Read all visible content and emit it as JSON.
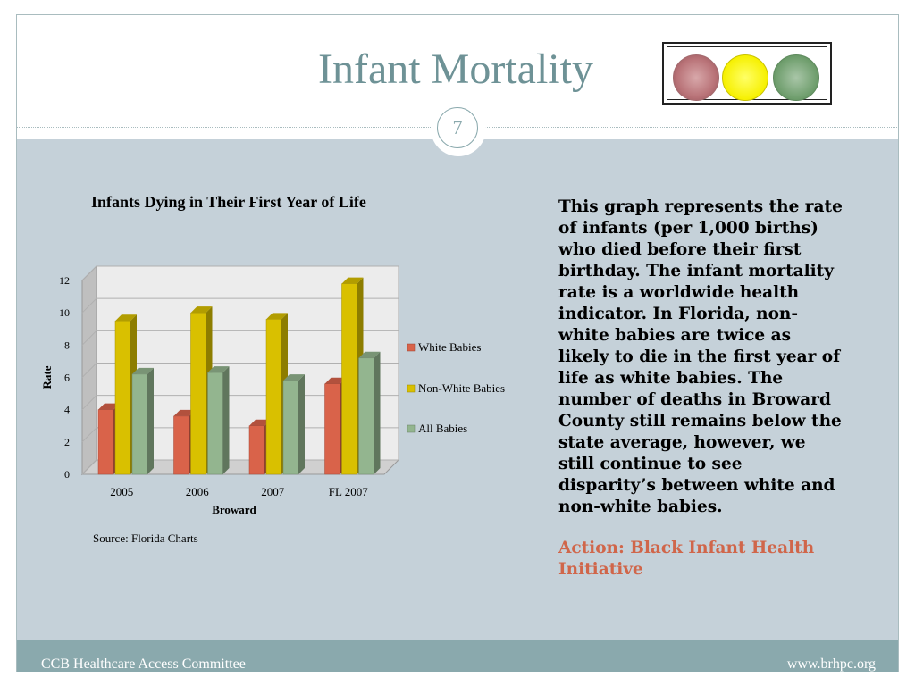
{
  "slide": {
    "title": "Infant Mortality",
    "number": "7",
    "footer_left": "CCB Healthcare Access Committee",
    "footer_right": "www.brhpc.org",
    "source": "Source:  Florida Charts",
    "description": "This graph represents the rate of infants (per 1,000 births) who died before their first birthday. The infant mortality rate is a worldwide health indicator. In Florida, non-white babies are twice as likely to die in the first year of life as white babies.  The number of deaths in Broward County still remains below the state average, however, we still continue to see disparity’s between white and non-white babies.",
    "action": "Action: Black Infant Health Initiative",
    "traffic_light_colors": [
      "#b97378",
      "#f6f000",
      "#6f9e6d"
    ]
  },
  "chart_data": {
    "type": "bar",
    "title": "Infants Dying in Their First Year of Life",
    "xlabel": "Broward",
    "ylabel": "Rate",
    "categories": [
      "2005",
      "2006",
      "2007",
      "FL 2007"
    ],
    "ylim": [
      0,
      12
    ],
    "yticks": [
      "0",
      "2",
      "4",
      "6",
      "8",
      "10",
      "12"
    ],
    "grid": true,
    "legend_position": "right",
    "series": [
      {
        "name": "White Babies",
        "color": "#d9634a",
        "values": [
          4.0,
          3.6,
          3.0,
          5.6
        ]
      },
      {
        "name": "Non-White Babies",
        "color": "#d9c000",
        "values": [
          9.5,
          10.0,
          9.6,
          11.8
        ]
      },
      {
        "name": "All Babies",
        "color": "#93b58f",
        "values": [
          6.2,
          6.3,
          5.8,
          7.2
        ]
      }
    ]
  }
}
